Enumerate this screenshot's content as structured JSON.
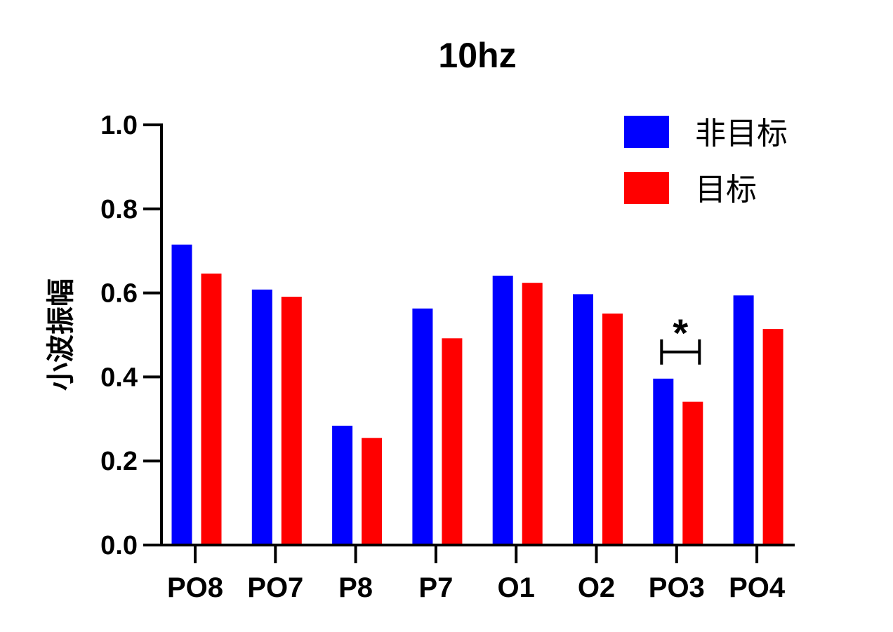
{
  "chart_data": {
    "type": "bar",
    "title": "10hz",
    "xlabel": "",
    "ylabel": "小波振幅",
    "ylim": [
      0,
      1.0
    ],
    "yticks": [
      0.0,
      0.2,
      0.4,
      0.6,
      0.8,
      1.0
    ],
    "ytick_labels": [
      "0.0",
      "0.2",
      "0.4",
      "0.6",
      "0.8",
      "1.0"
    ],
    "categories": [
      "PO8",
      "PO7",
      "P8",
      "P7",
      "O1",
      "O2",
      "PO3",
      "PO4"
    ],
    "series": [
      {
        "name": "非目标",
        "color": "#0000ff",
        "values": [
          0.715,
          0.608,
          0.284,
          0.563,
          0.641,
          0.597,
          0.396,
          0.594
        ]
      },
      {
        "name": "目标",
        "color": "#ff0000",
        "values": [
          0.646,
          0.591,
          0.255,
          0.492,
          0.624,
          0.551,
          0.341,
          0.514
        ]
      }
    ],
    "annotations": [
      {
        "category": "PO3",
        "text": "*",
        "type": "significance-bracket"
      }
    ],
    "legend_position": "top-right",
    "grid": false
  }
}
